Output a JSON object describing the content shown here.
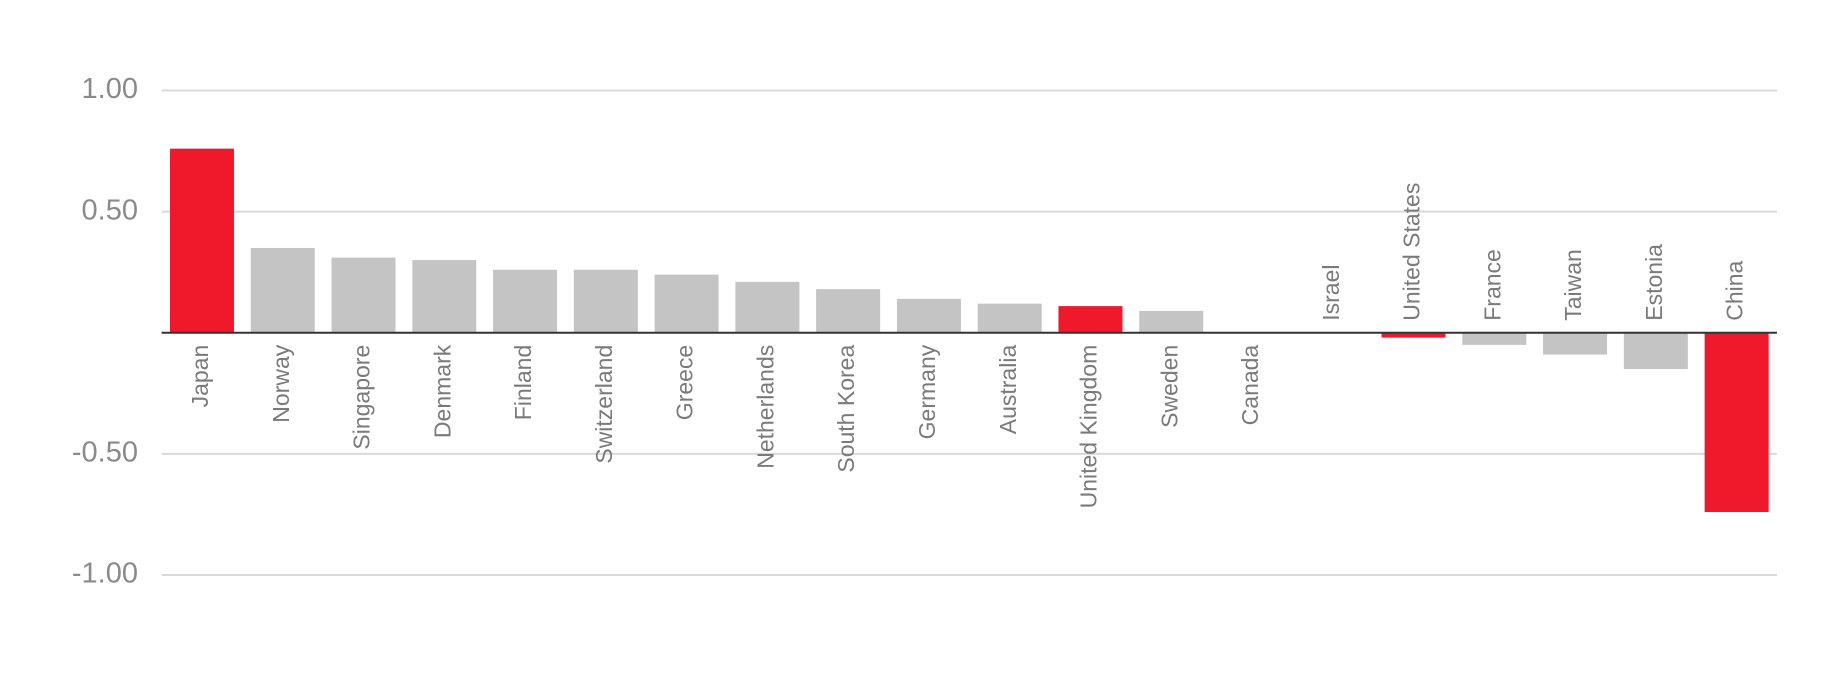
{
  "chart_data": {
    "type": "bar",
    "categories": [
      "Japan",
      "Norway",
      "Singapore",
      "Denmark",
      "Finland",
      "Switzerland",
      "Greece",
      "Netherlands",
      "South Korea",
      "Germany",
      "Australia",
      "United Kingdom",
      "Sweden",
      "Canada",
      "Israel",
      "United States",
      "France",
      "Taiwan",
      "Estonia",
      "China"
    ],
    "values": [
      0.76,
      0.35,
      0.31,
      0.3,
      0.26,
      0.26,
      0.24,
      0.21,
      0.18,
      0.14,
      0.12,
      0.11,
      0.09,
      0.001,
      -0.001,
      -0.02,
      -0.05,
      -0.09,
      -0.15,
      -0.74
    ],
    "colors": [
      "#f0192b",
      "#c4c4c4",
      "#c4c4c4",
      "#c4c4c4",
      "#c4c4c4",
      "#c4c4c4",
      "#c4c4c4",
      "#c4c4c4",
      "#c4c4c4",
      "#c4c4c4",
      "#c4c4c4",
      "#f0192b",
      "#c4c4c4",
      "#c4c4c4",
      "#c4c4c4",
      "#f0192b",
      "#c4c4c4",
      "#c4c4c4",
      "#c4c4c4",
      "#f0192b"
    ],
    "ylim": [
      -1.1,
      1.3
    ],
    "yticks": [
      {
        "value": -1,
        "label": "-1.00"
      },
      {
        "value": -0.5,
        "label": "-0.50"
      },
      {
        "value": 0.5,
        "label": "0.50"
      },
      {
        "value": 1,
        "label": "1.00"
      }
    ],
    "grid": true
  }
}
